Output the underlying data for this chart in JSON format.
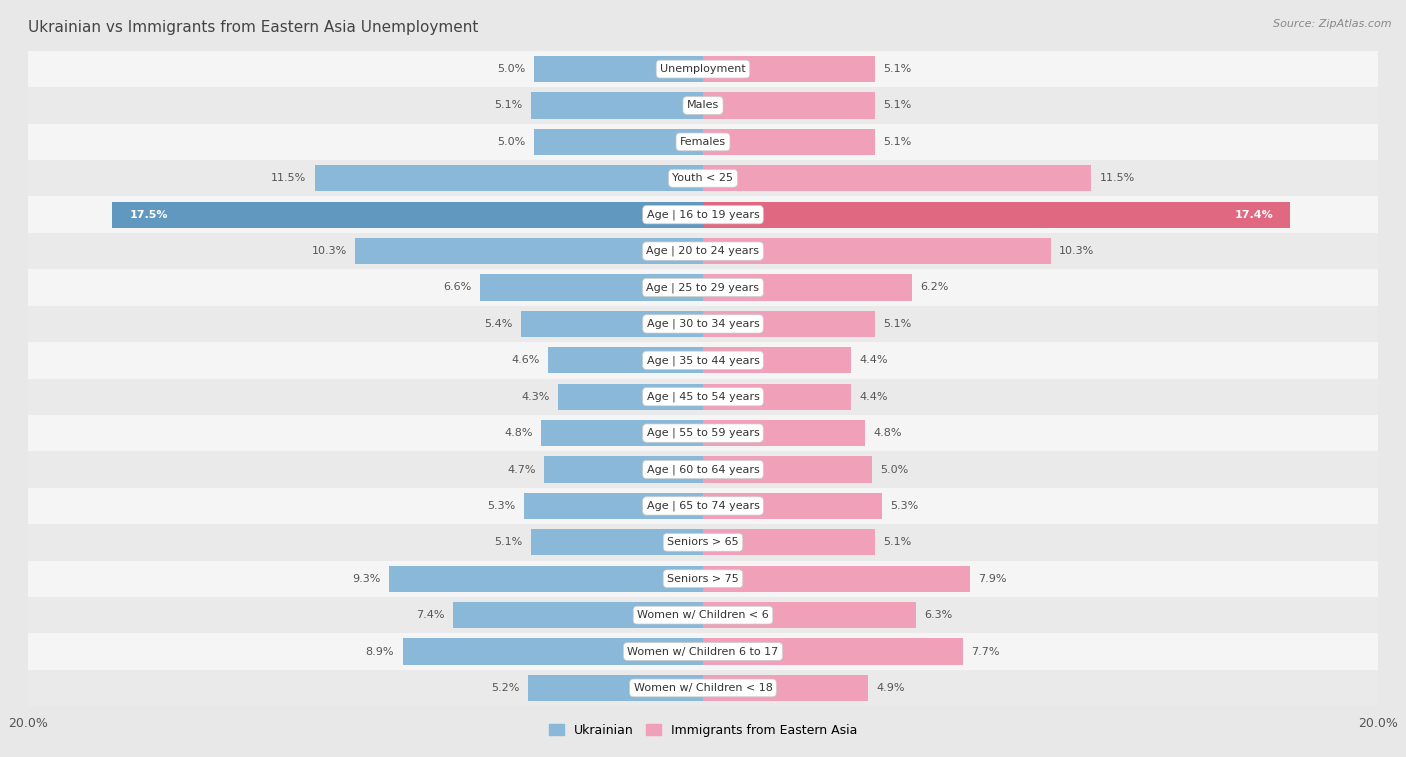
{
  "title": "Ukrainian vs Immigrants from Eastern Asia Unemployment",
  "source": "Source: ZipAtlas.com",
  "categories": [
    "Unemployment",
    "Males",
    "Females",
    "Youth < 25",
    "Age | 16 to 19 years",
    "Age | 20 to 24 years",
    "Age | 25 to 29 years",
    "Age | 30 to 34 years",
    "Age | 35 to 44 years",
    "Age | 45 to 54 years",
    "Age | 55 to 59 years",
    "Age | 60 to 64 years",
    "Age | 65 to 74 years",
    "Seniors > 65",
    "Seniors > 75",
    "Women w/ Children < 6",
    "Women w/ Children 6 to 17",
    "Women w/ Children < 18"
  ],
  "left_values": [
    5.0,
    5.1,
    5.0,
    11.5,
    17.5,
    10.3,
    6.6,
    5.4,
    4.6,
    4.3,
    4.8,
    4.7,
    5.3,
    5.1,
    9.3,
    7.4,
    8.9,
    5.2
  ],
  "right_values": [
    5.1,
    5.1,
    5.1,
    11.5,
    17.4,
    10.3,
    6.2,
    5.1,
    4.4,
    4.4,
    4.8,
    5.0,
    5.3,
    5.1,
    7.9,
    6.3,
    7.7,
    4.9
  ],
  "left_color": "#8ab8d8",
  "right_color": "#f0a0b8",
  "left_highlight": "#6098c0",
  "right_highlight": "#e06880",
  "axis_limit": 20.0,
  "label_left": "Ukrainian",
  "label_right": "Immigrants from Eastern Asia",
  "bg_color": "#e8e8e8",
  "row_color_odd": "#f5f5f5",
  "row_color_even": "#eaeaea",
  "title_fontsize": 11,
  "source_fontsize": 8,
  "value_fontsize": 8,
  "label_fontsize": 8,
  "bar_height": 0.72,
  "highlight_row": 4
}
